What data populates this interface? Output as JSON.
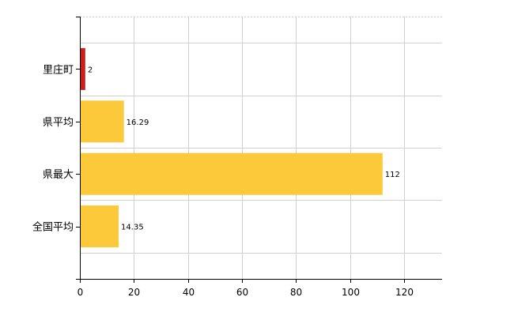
{
  "chart_data": {
    "type": "bar",
    "orientation": "horizontal",
    "categories": [
      "里庄町",
      "県平均",
      "県最大",
      "全国平均"
    ],
    "values": [
      2,
      16.29,
      112,
      14.35
    ],
    "data_labels": [
      "2",
      "16.29",
      "112",
      "14.35"
    ],
    "x_ticks": [
      "0",
      "20",
      "40",
      "60",
      "80",
      "100",
      "120"
    ],
    "xlim": [
      0,
      134
    ],
    "grid": true,
    "colors": {
      "highlight": "#c8201e",
      "default": "#fcc93b",
      "grid": "#d0d0d0",
      "axis": "#000000"
    },
    "highlight_index": 0,
    "title": "",
    "xlabel": "",
    "ylabel": ""
  }
}
